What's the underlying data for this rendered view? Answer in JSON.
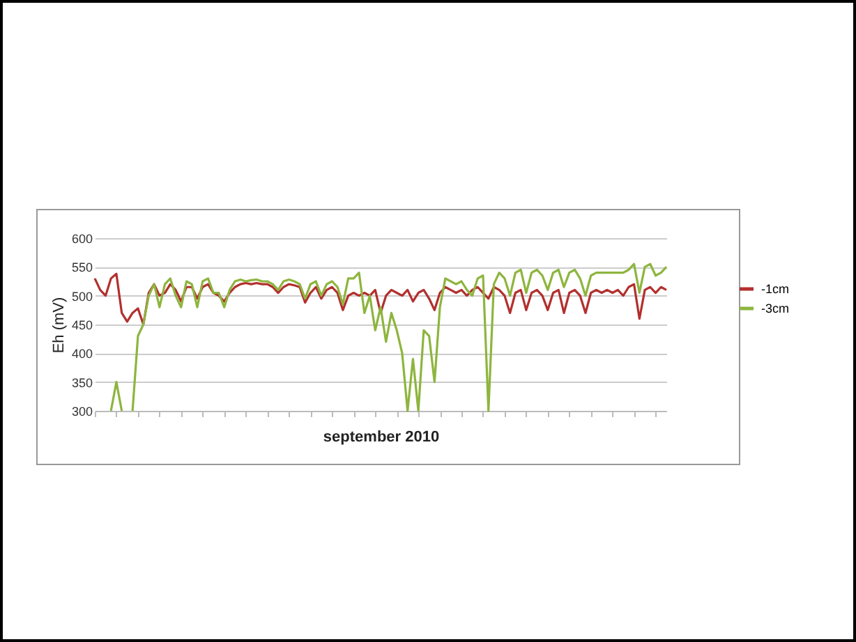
{
  "chart_data": {
    "type": "line",
    "xlabel": "september 2010",
    "ylabel": "Eh (mV)",
    "ylim": [
      300,
      600
    ],
    "yticks": [
      300,
      350,
      400,
      450,
      500,
      550,
      600
    ],
    "grid": "y",
    "legend": "right",
    "categories": [
      null,
      null,
      null,
      null,
      null,
      null,
      null,
      null,
      null,
      null,
      null,
      null,
      null,
      null,
      null,
      null,
      null,
      null,
      null,
      null,
      null,
      null,
      null,
      null,
      null,
      null,
      null,
      null,
      null,
      null,
      null,
      null,
      null,
      null,
      null,
      null,
      null,
      null,
      null,
      null,
      null,
      null,
      null,
      null,
      null,
      null,
      null,
      null,
      null,
      null,
      null,
      null,
      null,
      null,
      null,
      null,
      null,
      null,
      null,
      null,
      null,
      null,
      null,
      null,
      null,
      null,
      null,
      null,
      null,
      null,
      null,
      null,
      null,
      null,
      null,
      null,
      null,
      null,
      null,
      null,
      null,
      null,
      null,
      null,
      null,
      null,
      null,
      null,
      null,
      null,
      null,
      null,
      null,
      null,
      null,
      null,
      null,
      null,
      null,
      null,
      null,
      null,
      null,
      null,
      null,
      null,
      null
    ],
    "series": [
      {
        "name": "-1cm",
        "color": "#b2302e",
        "values": [
          530,
          510,
          500,
          530,
          538,
          470,
          455,
          470,
          478,
          450,
          505,
          520,
          500,
          505,
          520,
          510,
          490,
          515,
          515,
          495,
          515,
          520,
          505,
          500,
          490,
          505,
          515,
          520,
          522,
          520,
          522,
          520,
          520,
          515,
          505,
          515,
          520,
          518,
          515,
          488,
          505,
          515,
          495,
          510,
          515,
          505,
          475,
          500,
          505,
          500,
          505,
          500,
          510,
          470,
          500,
          510,
          505,
          500,
          510,
          490,
          505,
          510,
          495,
          475,
          505,
          515,
          510,
          505,
          510,
          500,
          510,
          515,
          505,
          495,
          515,
          510,
          500,
          470,
          505,
          510,
          475,
          505,
          510,
          500,
          475,
          505,
          510,
          470,
          505,
          510,
          500,
          470,
          505,
          510,
          505,
          510,
          505,
          510,
          500,
          515,
          520,
          460,
          510,
          515,
          505,
          515,
          510
        ]
      },
      {
        "name": "-3cm",
        "color": "#8db53e",
        "values": [
          null,
          null,
          null,
          300,
          350,
          300,
          null,
          300,
          430,
          450,
          500,
          520,
          480,
          520,
          530,
          500,
          480,
          525,
          520,
          480,
          525,
          530,
          505,
          505,
          480,
          510,
          525,
          528,
          525,
          527,
          528,
          525,
          525,
          520,
          510,
          525,
          528,
          525,
          520,
          495,
          520,
          525,
          500,
          520,
          525,
          515,
          485,
          530,
          530,
          540,
          470,
          500,
          440,
          480,
          420,
          470,
          440,
          400,
          300,
          390,
          300,
          440,
          430,
          350,
          480,
          530,
          525,
          520,
          525,
          510,
          500,
          530,
          535,
          300,
          520,
          540,
          530,
          500,
          540,
          545,
          505,
          540,
          545,
          535,
          510,
          540,
          545,
          515,
          540,
          545,
          530,
          500,
          535,
          540,
          540,
          540,
          540,
          540,
          540,
          545,
          555,
          505,
          550,
          555,
          535,
          540,
          550
        ]
      }
    ]
  }
}
